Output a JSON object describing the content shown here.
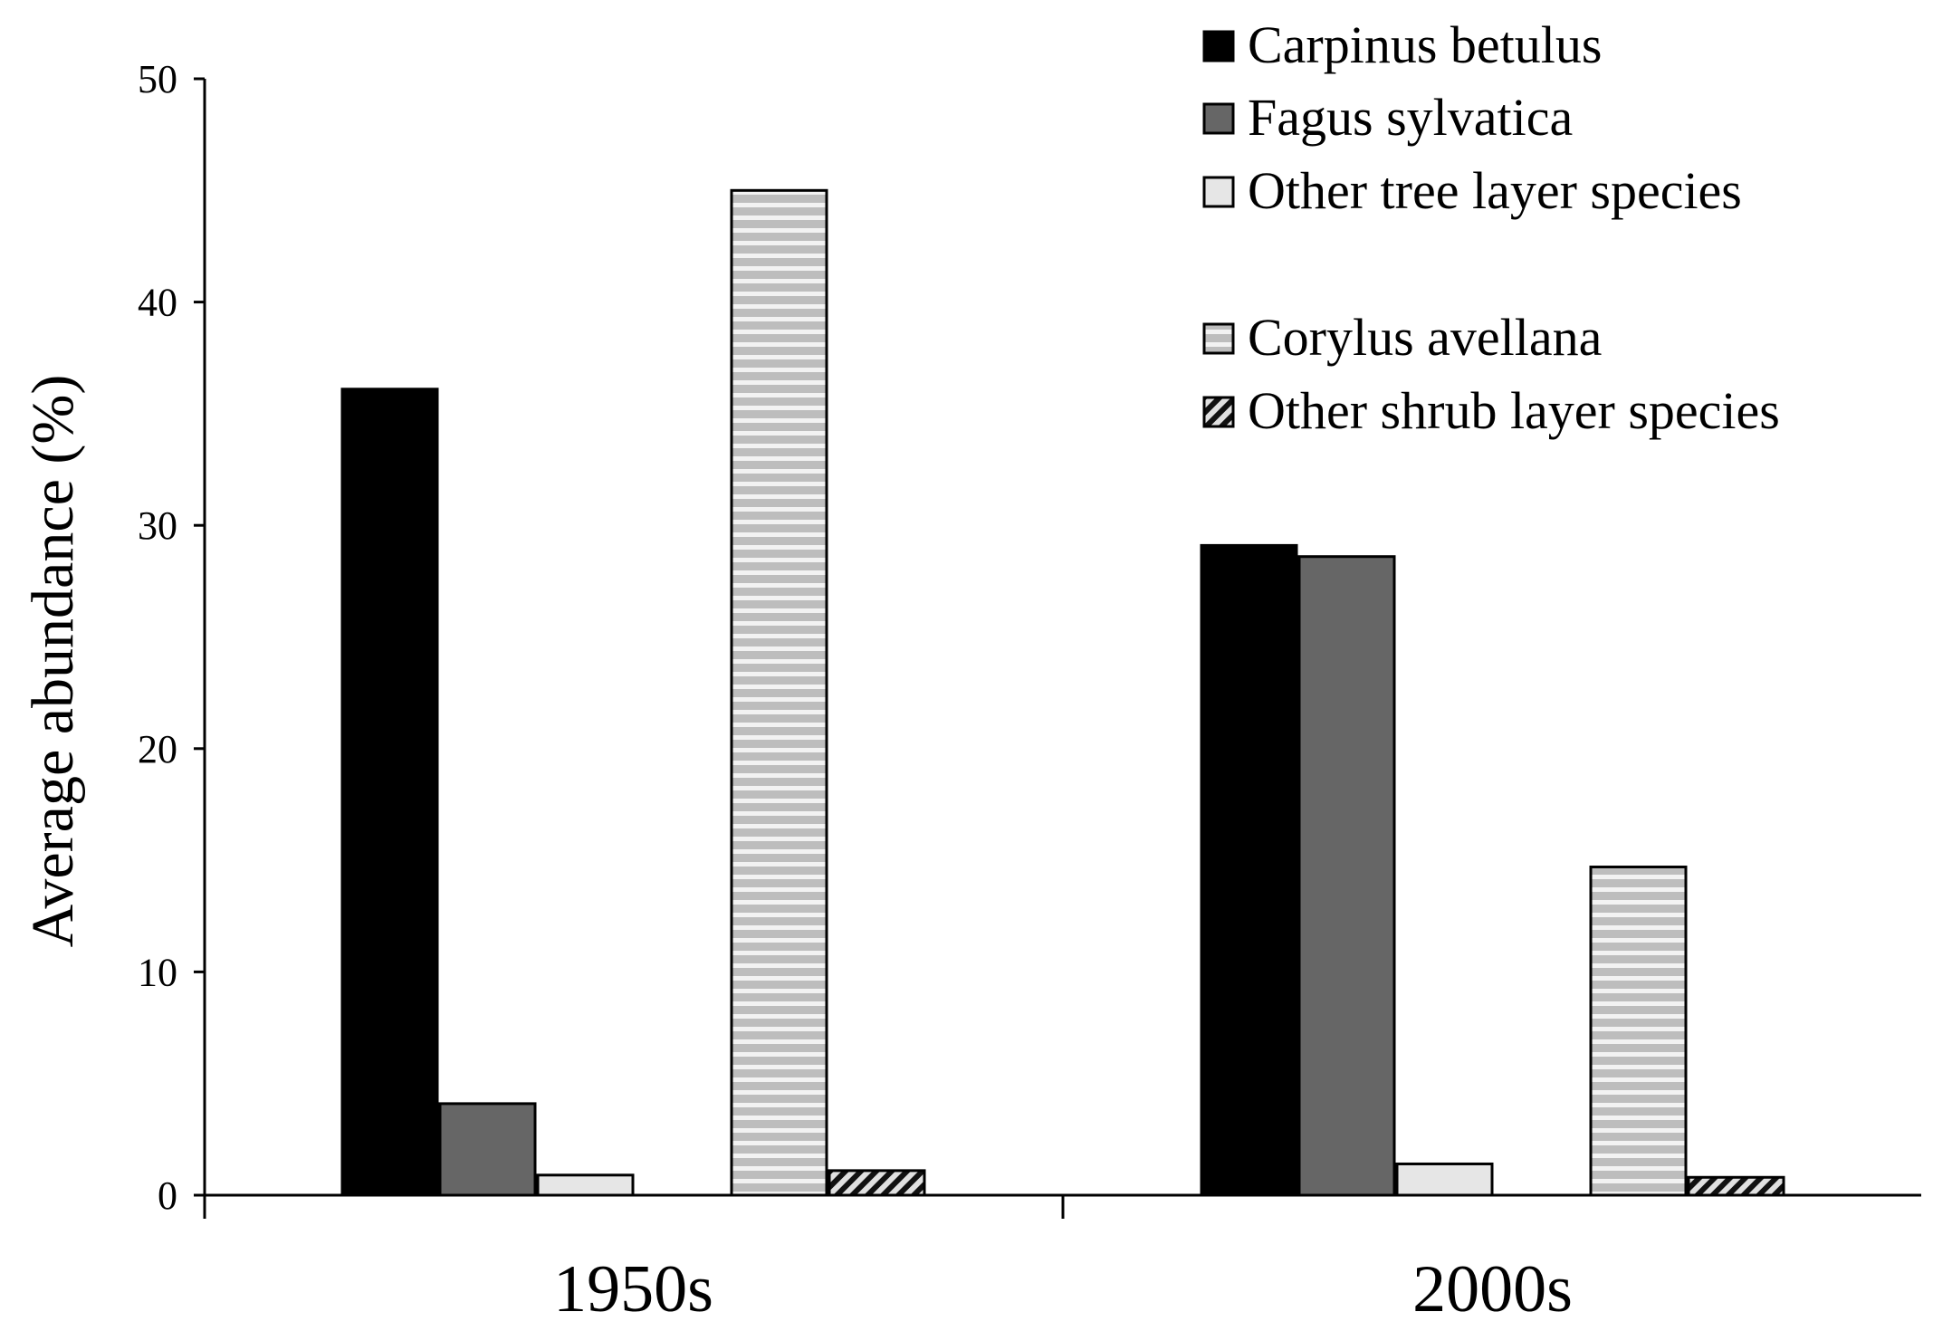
{
  "chart_data": {
    "type": "bar",
    "categories": [
      "1950s",
      "2000s"
    ],
    "ylabel": "Average abundance (%)",
    "xlabel": "",
    "title": "",
    "ylim": [
      0,
      50
    ],
    "yticks": [
      0,
      10,
      20,
      30,
      40,
      50
    ],
    "grid": false,
    "legend_position": "top-right",
    "series": [
      {
        "name": "Carpinus betulus",
        "values": [
          36.1,
          29.1
        ],
        "pattern": "solid-black"
      },
      {
        "name": "Fagus sylvatica",
        "values": [
          4.1,
          28.6
        ],
        "pattern": "solid-dark-gray"
      },
      {
        "name": "Other tree layer species",
        "values": [
          0.9,
          1.4
        ],
        "pattern": "solid-light-gray"
      },
      {
        "name": "Corylus avellana",
        "values": [
          45.0,
          14.7
        ],
        "pattern": "horizontal-stripes"
      },
      {
        "name": "Other shrub layer species",
        "values": [
          1.1,
          0.8
        ],
        "pattern": "diagonal-hatch"
      }
    ],
    "colors": {
      "black": "#000000",
      "dark_gray": "#666666",
      "light_gray": "#e6e6e6",
      "stripe_fill": "#bdbdbd",
      "stripe_line": "#f2f2f2"
    }
  }
}
